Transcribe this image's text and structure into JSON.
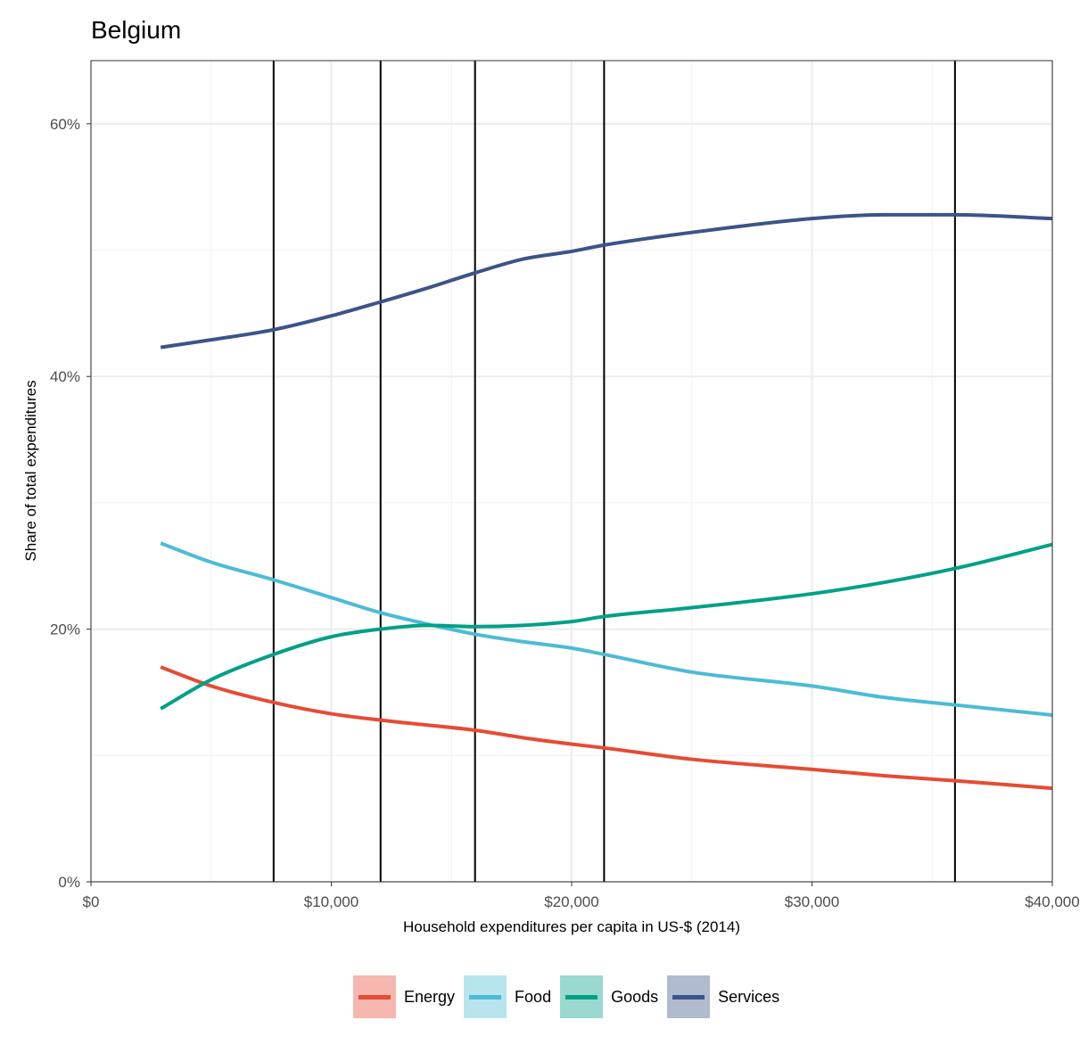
{
  "chart_data": {
    "type": "line",
    "title": "Belgium",
    "xlabel": "Household expenditures per capita in US-$ (2014)",
    "ylabel": "Share of total expenditures",
    "xlim": [
      0,
      40000
    ],
    "ylim": [
      0,
      0.65
    ],
    "x_ticks": [
      {
        "value": 0,
        "label": "$0"
      },
      {
        "value": 10000,
        "label": "$10,000"
      },
      {
        "value": 20000,
        "label": "$20,000"
      },
      {
        "value": 30000,
        "label": "$30,000"
      },
      {
        "value": 40000,
        "label": "$40,000"
      }
    ],
    "y_ticks": [
      {
        "value": 0,
        "label": "0%"
      },
      {
        "value": 0.2,
        "label": "20%"
      },
      {
        "value": 0.4,
        "label": "40%"
      },
      {
        "value": 0.6,
        "label": "60%"
      }
    ],
    "vlines": [
      7600,
      12050,
      15980,
      21350,
      35950
    ],
    "grid": true,
    "legend_position": "bottom",
    "x": [
      2900,
      5000,
      7600,
      10000,
      12050,
      14000,
      15980,
      18000,
      20000,
      21350,
      25000,
      30000,
      33000,
      35950,
      40000
    ],
    "series": [
      {
        "name": "Energy",
        "color": "#E64B35",
        "bg": "#F5B7AE",
        "values": [
          0.17,
          0.155,
          0.142,
          0.133,
          0.128,
          0.124,
          0.12,
          0.114,
          0.109,
          0.106,
          0.097,
          0.089,
          0.084,
          0.08,
          0.074
        ]
      },
      {
        "name": "Food",
        "color": "#4DBBD5",
        "bg": "#B8E4EE",
        "values": [
          0.268,
          0.253,
          0.239,
          0.225,
          0.213,
          0.204,
          0.196,
          0.19,
          0.185,
          0.18,
          0.166,
          0.155,
          0.146,
          0.14,
          0.132
        ]
      },
      {
        "name": "Goods",
        "color": "#00A087",
        "bg": "#99D9CF",
        "values": [
          0.137,
          0.16,
          0.18,
          0.194,
          0.2,
          0.203,
          0.202,
          0.203,
          0.206,
          0.21,
          0.217,
          0.228,
          0.237,
          0.248,
          0.267
        ]
      },
      {
        "name": "Services",
        "color": "#3C5488",
        "bg": "#B1BBCF",
        "values": [
          0.423,
          0.429,
          0.437,
          0.448,
          0.459,
          0.47,
          0.482,
          0.493,
          0.499,
          0.504,
          0.514,
          0.525,
          0.528,
          0.528,
          0.525
        ]
      }
    ]
  }
}
